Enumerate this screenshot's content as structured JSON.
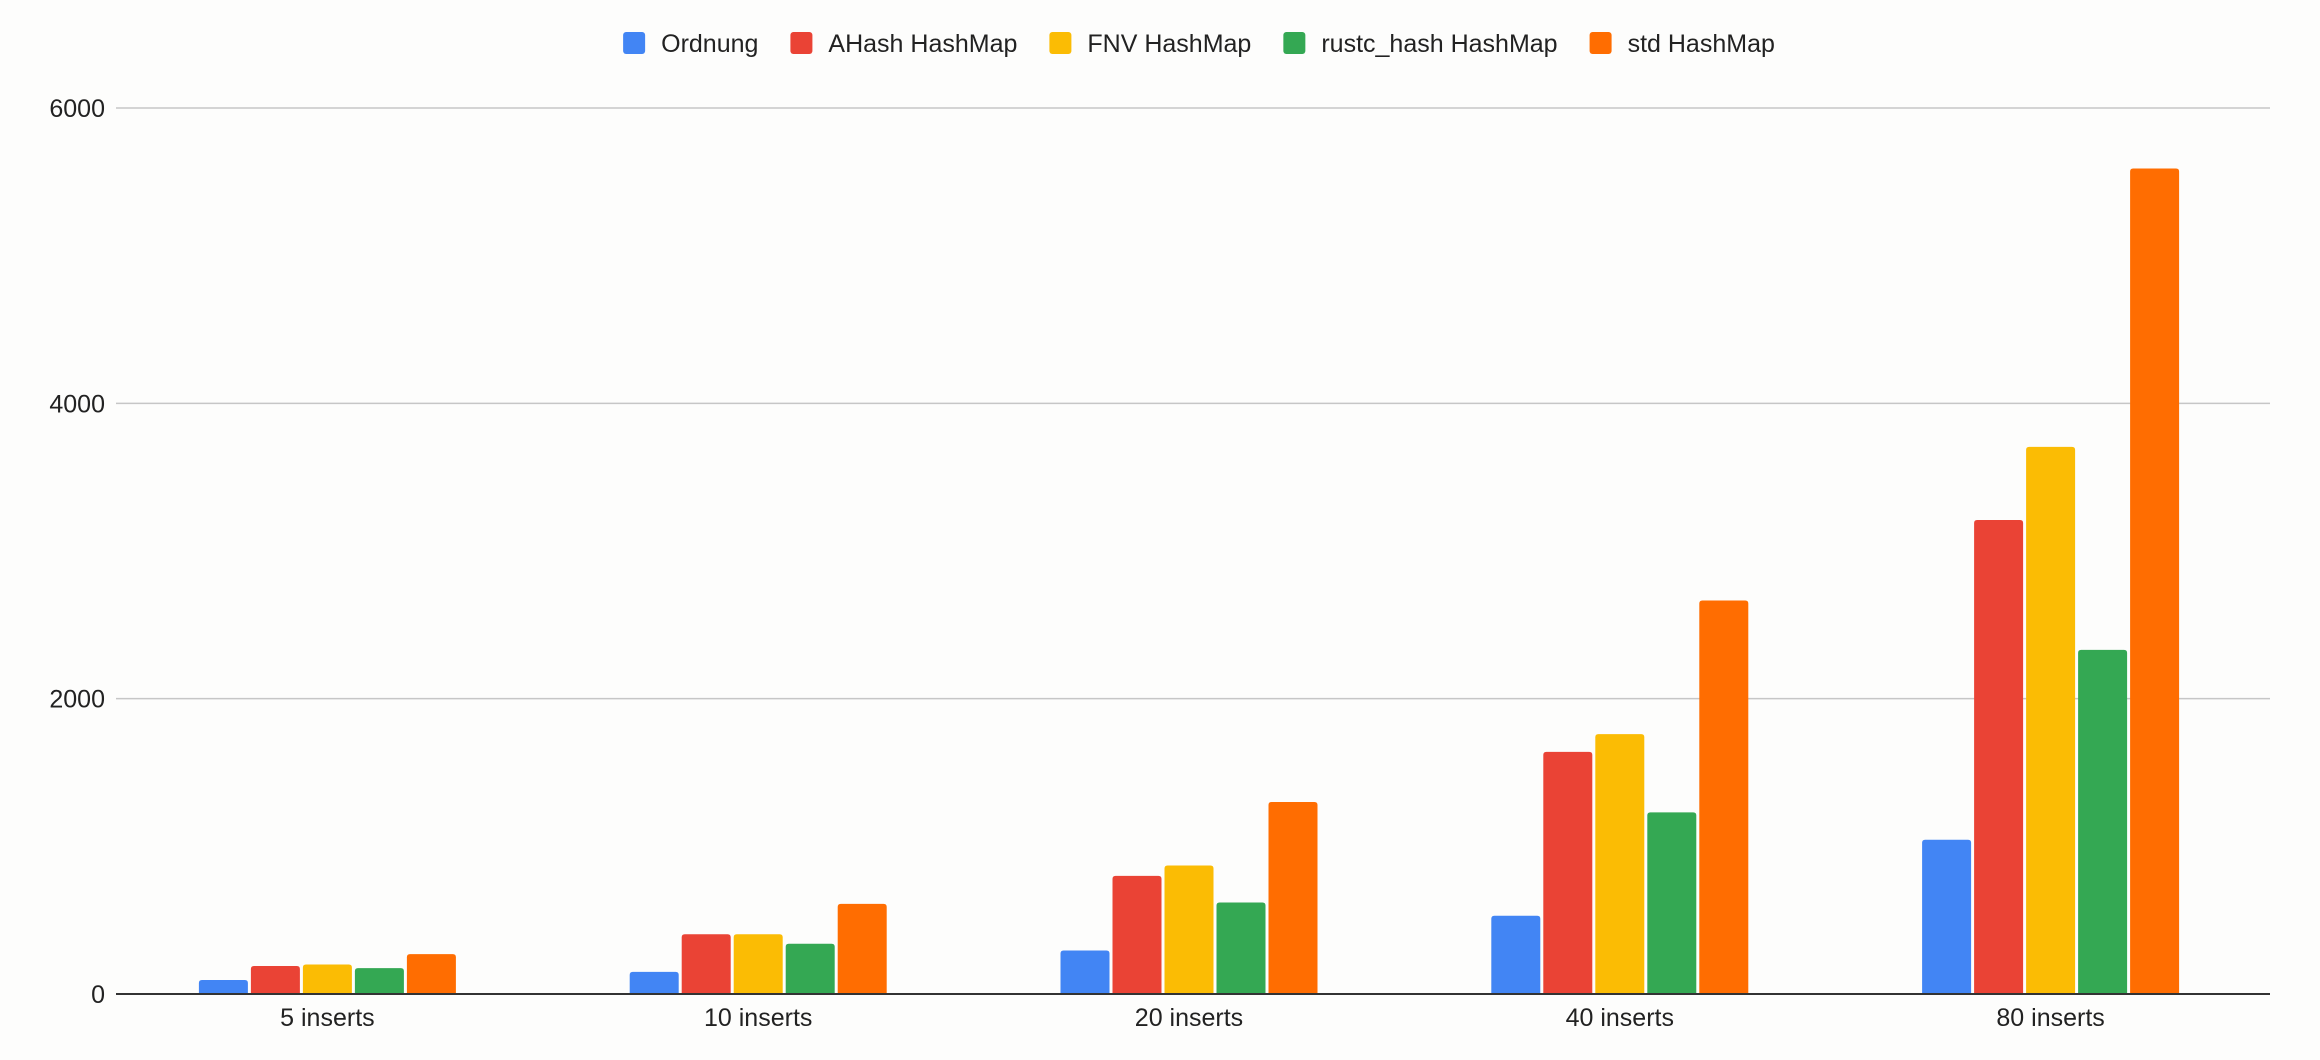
{
  "chart_data": {
    "type": "bar",
    "title": "",
    "xlabel": "",
    "ylabel": "",
    "ylim": [
      0,
      6000
    ],
    "yticks": [
      0,
      2000,
      4000,
      6000
    ],
    "grid": true,
    "legend_position": "top",
    "categories": [
      "5 inserts",
      "10 inserts",
      "20 inserts",
      "40 inserts",
      "80 inserts"
    ],
    "series": [
      {
        "name": "Ordnung",
        "color": "#4285f4",
        "values": [
          95,
          150,
          295,
          530,
          1045
        ]
      },
      {
        "name": "AHash HashMap",
        "color": "#ea4335",
        "values": [
          190,
          405,
          800,
          1640,
          3210
        ]
      },
      {
        "name": "FNV HashMap",
        "color": "#fbbc04",
        "values": [
          200,
          405,
          870,
          1760,
          3705
        ]
      },
      {
        "name": "rustc_hash HashMap",
        "color": "#34a853",
        "values": [
          175,
          340,
          620,
          1230,
          2330
        ]
      },
      {
        "name": "std HashMap",
        "color": "#ff6d01",
        "values": [
          270,
          610,
          1300,
          2665,
          5590
        ]
      }
    ]
  }
}
